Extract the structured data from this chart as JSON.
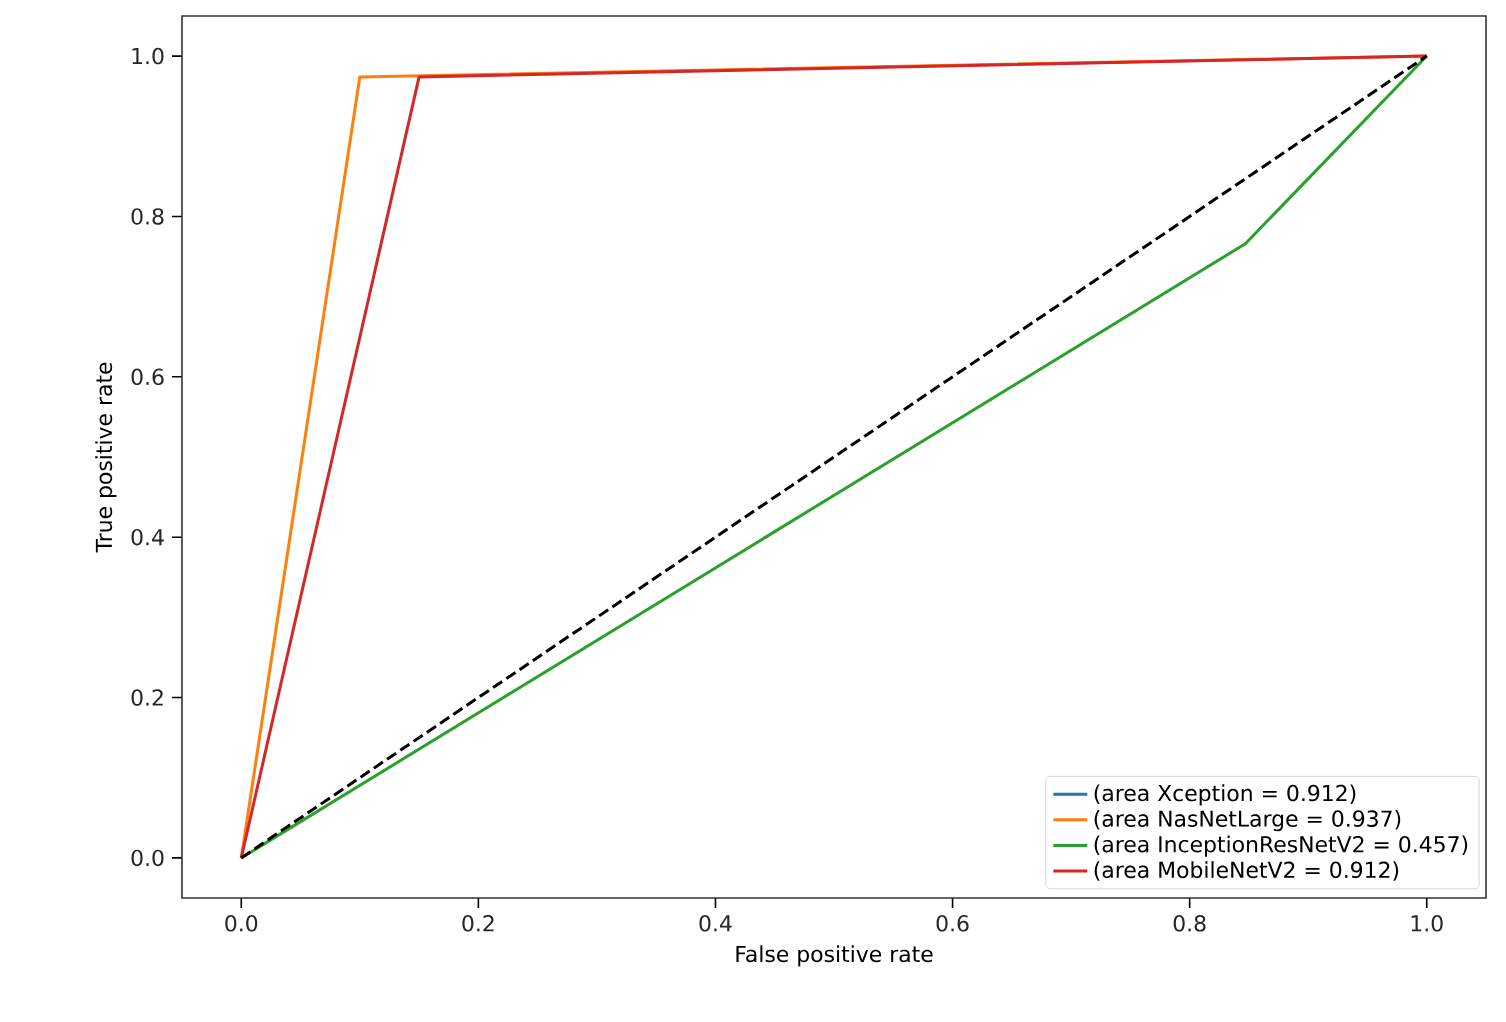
{
  "chart_data": {
    "type": "line",
    "xlabel": "False positive rate",
    "ylabel": "True positive rate",
    "xlim": [
      -0.05,
      1.05
    ],
    "ylim": [
      -0.05,
      1.05
    ],
    "xticks": [
      {
        "value": 0,
        "label": "0.0"
      },
      0.2,
      0.4,
      0.6,
      0.8,
      {
        "value": 1,
        "label": "1.0"
      }
    ],
    "yticks": [
      {
        "value": 0,
        "label": "0.0"
      },
      0.2,
      0.4,
      0.6,
      0.8,
      {
        "value": 1,
        "label": "1.0"
      }
    ],
    "legend": "bottom right",
    "grid": false,
    "series": [
      {
        "name": "(area Xception = 0.912)",
        "color": "#1f77b4",
        "values": [
          null,
          null,
          null
        ]
      },
      {
        "name": "(area NasNetLarge = 0.937)",
        "color": "#ff7f0e",
        "x": [
          0,
          0.1,
          1
        ],
        "values": [
          0,
          0.974,
          1
        ]
      },
      {
        "name": "(area InceptionResNetV2 = 0.457)",
        "color": "#2ca02c",
        "x": [
          0,
          0.847,
          1
        ],
        "values": [
          0,
          0.766,
          1
        ]
      },
      {
        "name": "(area MobileNetV2 = 0.912)",
        "color": "#d62728",
        "x": [
          0,
          0.15,
          1
        ],
        "values": [
          0,
          0.974,
          1
        ]
      },
      {
        "color": "#000000",
        "line_style": "dashed",
        "x": [
          0,
          1
        ],
        "values": [
          0,
          1
        ]
      }
    ]
  }
}
